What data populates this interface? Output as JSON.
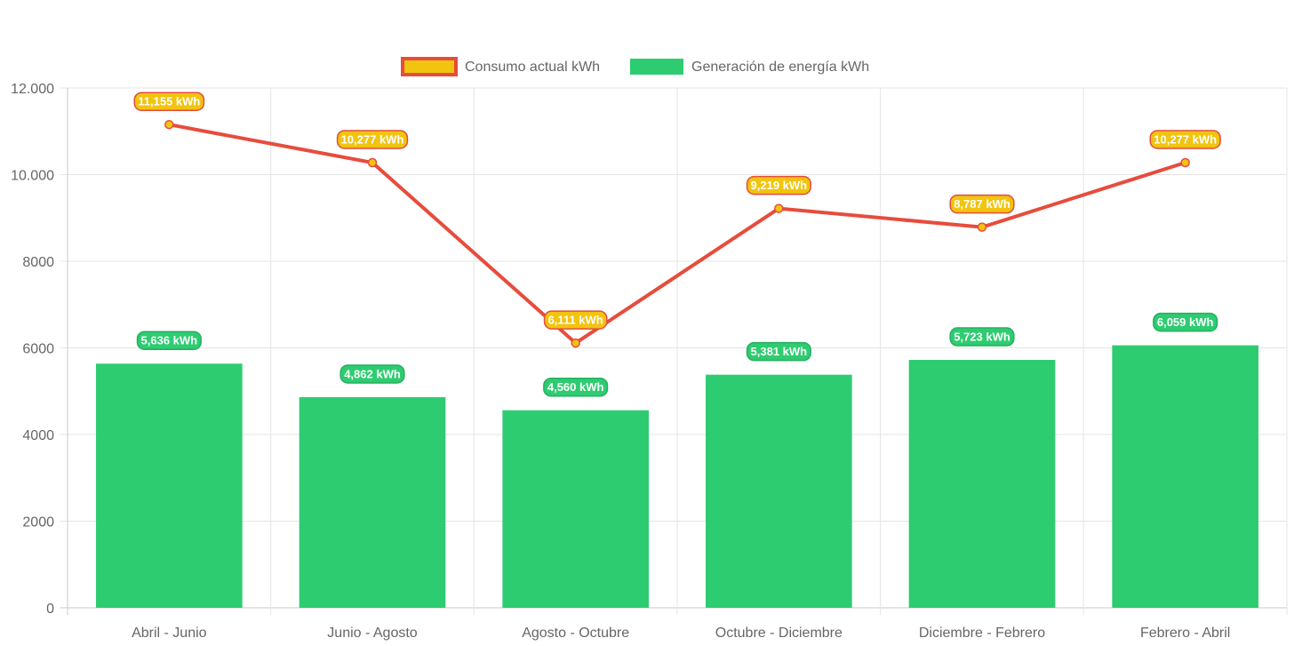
{
  "chart_data": {
    "type": "bar",
    "categories": [
      "Abril - Junio",
      "Junio - Agosto",
      "Agosto - Octubre",
      "Octubre - Diciembre",
      "Diciembre - Febrero",
      "Febrero - Abril"
    ],
    "series": [
      {
        "name": "Consumo actual kWh",
        "type": "line",
        "values": [
          11155,
          10277,
          6111,
          9219,
          8787,
          10277
        ],
        "data_labels": [
          "11,155 kWh",
          "10,277 kWh",
          "6,111 kWh",
          "9,219 kWh",
          "8,787 kWh",
          "10,277 kWh"
        ],
        "line_color": "#E74C3C",
        "fill_color": "#F1C40F"
      },
      {
        "name": "Generación de energía kWh",
        "type": "bar",
        "values": [
          5636,
          4862,
          4560,
          5381,
          5723,
          6059
        ],
        "data_labels": [
          "5,636 kWh",
          "4,862 kWh",
          "4,560 kWh",
          "5,381 kWh",
          "5,723 kWh",
          "6,059 kWh"
        ],
        "color": "#2ECC71"
      }
    ],
    "ylim": [
      0,
      12000
    ],
    "y_ticks": [
      0,
      2000,
      4000,
      6000,
      8000,
      10000,
      12000
    ],
    "y_tick_labels": [
      "0",
      "2000",
      "4000",
      "6000",
      "8000",
      "10.000",
      "12.000"
    ],
    "title": "",
    "xlabel": "",
    "ylabel": "",
    "grid": true,
    "legend_position": "top"
  }
}
